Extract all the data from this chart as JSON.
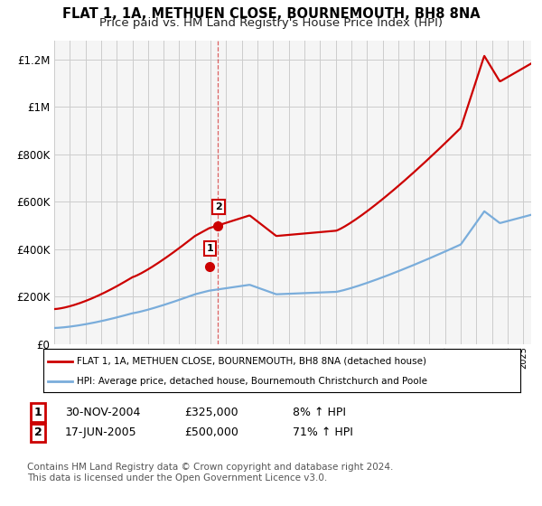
{
  "title": "FLAT 1, 1A, METHUEN CLOSE, BOURNEMOUTH, BH8 8NA",
  "subtitle": "Price paid vs. HM Land Registry's House Price Index (HPI)",
  "title_fontsize": 10.5,
  "subtitle_fontsize": 9.5,
  "red_label": "FLAT 1, 1A, METHUEN CLOSE, BOURNEMOUTH, BH8 8NA (detached house)",
  "blue_label": "HPI: Average price, detached house, Bournemouth Christchurch and Poole",
  "sale1_date": "30-NOV-2004",
  "sale1_price": "£325,000",
  "sale1_hpi": "8% ↑ HPI",
  "sale1_x": 2004.92,
  "sale1_y": 325000,
  "sale2_date": "17-JUN-2005",
  "sale2_price": "£500,000",
  "sale2_hpi": "71% ↑ HPI",
  "sale2_x": 2005.46,
  "sale2_y": 500000,
  "xmin": 1995.0,
  "xmax": 2025.5,
  "ymin": 0,
  "ymax": 1280000,
  "yticks": [
    0,
    200000,
    400000,
    600000,
    800000,
    1000000,
    1200000
  ],
  "ytick_labels": [
    "£0",
    "£200K",
    "£400K",
    "£600K",
    "£800K",
    "£1M",
    "£1.2M"
  ],
  "background_color": "#f5f5f5",
  "grid_color": "#cccccc",
  "red_color": "#cc0000",
  "blue_color": "#7aaddb",
  "footnote": "Contains HM Land Registry data © Crown copyright and database right 2024.\nThis data is licensed under the Open Government Licence v3.0."
}
